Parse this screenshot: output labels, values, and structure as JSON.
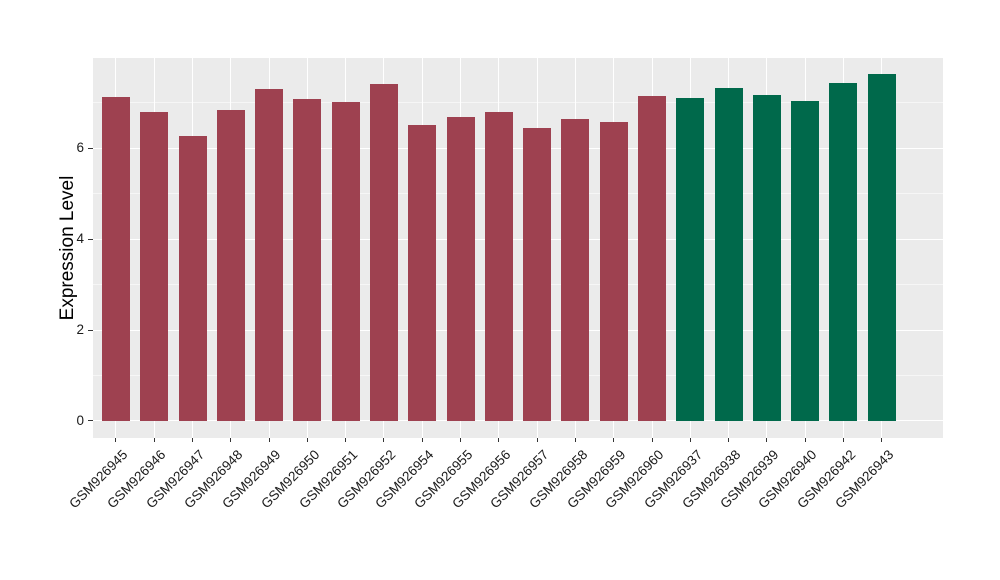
{
  "figure": {
    "y_axis_title": "Expression Level",
    "colors": {
      "panel_background": "#EBEBEB",
      "grid": "#FFFFFF",
      "tick_mark": "#333333",
      "tick_label": "#1A1A1A",
      "axis_title": "#000000",
      "group1_red": "#9E4150",
      "group2_green": "#00694B"
    }
  },
  "chart_data": {
    "type": "bar",
    "title": "",
    "xlabel": "",
    "ylabel": "Expression Level",
    "categories": [
      "GSM926945",
      "GSM926946",
      "GSM926947",
      "GSM926948",
      "GSM926949",
      "GSM926950",
      "GSM926951",
      "GSM926952",
      "GSM926954",
      "GSM926955",
      "GSM926956",
      "GSM926957",
      "GSM926958",
      "GSM926959",
      "GSM926960",
      "GSM926937",
      "GSM926938",
      "GSM926939",
      "GSM926940",
      "GSM926942",
      "GSM926943"
    ],
    "values": [
      7.12,
      6.79,
      6.26,
      6.84,
      7.3,
      7.08,
      7.01,
      7.41,
      6.51,
      6.68,
      6.79,
      6.44,
      6.64,
      6.57,
      7.15,
      7.1,
      7.32,
      7.16,
      7.03,
      7.43,
      7.63
    ],
    "bar_groups": [
      "red",
      "red",
      "red",
      "red",
      "red",
      "red",
      "red",
      "red",
      "red",
      "red",
      "red",
      "red",
      "red",
      "red",
      "red",
      "green",
      "green",
      "green",
      "green",
      "green",
      "green"
    ],
    "group_colors": {
      "red": "#9E4150",
      "green": "#00694B"
    },
    "yticks": [
      0,
      2,
      4,
      6
    ],
    "yticks_minor": [
      1,
      3,
      5,
      7
    ],
    "ylim": [
      0,
      7.63
    ],
    "panel_ylim": [
      -0.374,
      7.98
    ],
    "grid": true,
    "legend": false,
    "x_label_rotation_deg": 45
  }
}
